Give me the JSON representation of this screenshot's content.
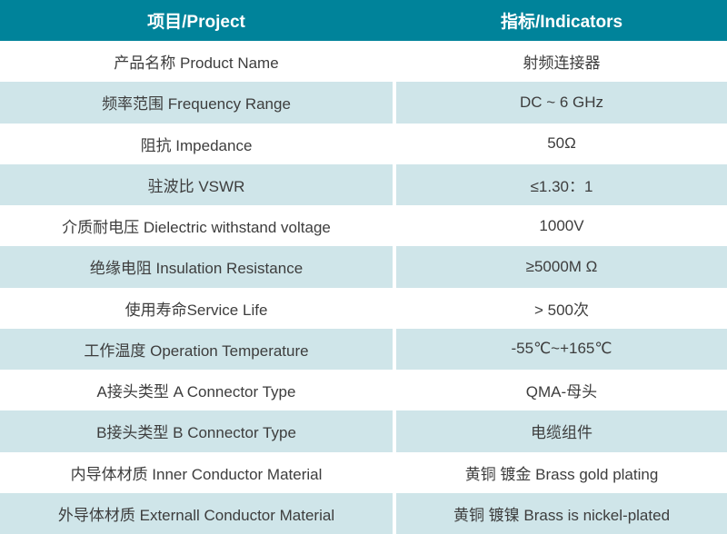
{
  "table": {
    "header": {
      "project": "项目/Project",
      "indicators": "指标/Indicators"
    },
    "rows": [
      {
        "project": "产品名称 Product Name",
        "indicator": "射频连接器"
      },
      {
        "project": "频率范围 Frequency Range",
        "indicator": "DC ~ 6 GHz"
      },
      {
        "project": "阻抗 Impedance",
        "indicator": "50Ω"
      },
      {
        "project": "驻波比 VSWR",
        "indicator": "≤1.30：1"
      },
      {
        "project": "介质耐电压 Dielectric withstand voltage",
        "indicator": "1000V"
      },
      {
        "project": "绝缘电阻 Insulation Resistance",
        "indicator": "≥5000M Ω"
      },
      {
        "project": "使用寿命Service Life",
        "indicator": "> 500次"
      },
      {
        "project": "工作温度 Operation Temperature",
        "indicator": "-55℃~+165℃"
      },
      {
        "project": "A接头类型 A Connector Type",
        "indicator": "QMA-母头"
      },
      {
        "project": "B接头类型 B Connector Type",
        "indicator": "电缆组件"
      },
      {
        "project": "内导体材质 Inner Conductor Material",
        "indicator": "黄铜 镀金 Brass gold plating"
      },
      {
        "project": "外导体材质 Externall Conductor Material",
        "indicator": "黄铜 镀镍 Brass is nickel-plated"
      }
    ],
    "colors": {
      "header_bg": "#00839A",
      "header_text": "#FFFFFF",
      "row_bg": "#FFFFFF",
      "row_alt_bg": "#CFE5E9",
      "body_text": "#3D3D3D"
    }
  }
}
